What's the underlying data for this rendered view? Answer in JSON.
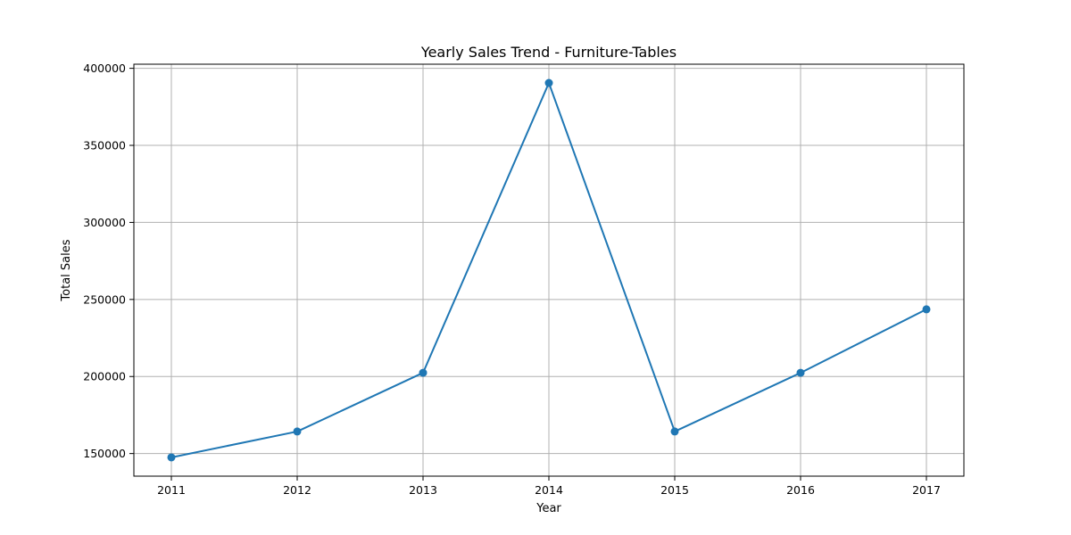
{
  "chart_data": {
    "type": "line",
    "title": "Yearly Sales Trend - Furniture-Tables",
    "xlabel": "Year",
    "ylabel": "Total Sales",
    "x": [
      "2011",
      "2012",
      "2013",
      "2014",
      "2015",
      "2016",
      "2017"
    ],
    "series": [
      {
        "values": [
          147500,
          164300,
          202400,
          390500,
          164300,
          202400,
          243600
        ],
        "color": "#1f77b4",
        "marker": "circle"
      }
    ],
    "yticks": [
      150000,
      200000,
      250000,
      300000,
      350000,
      400000
    ],
    "ytick_labels": [
      "150000",
      "200000",
      "250000",
      "300000",
      "350000",
      "400000"
    ],
    "ylim": [
      135329,
      402671
    ],
    "grid": true
  }
}
